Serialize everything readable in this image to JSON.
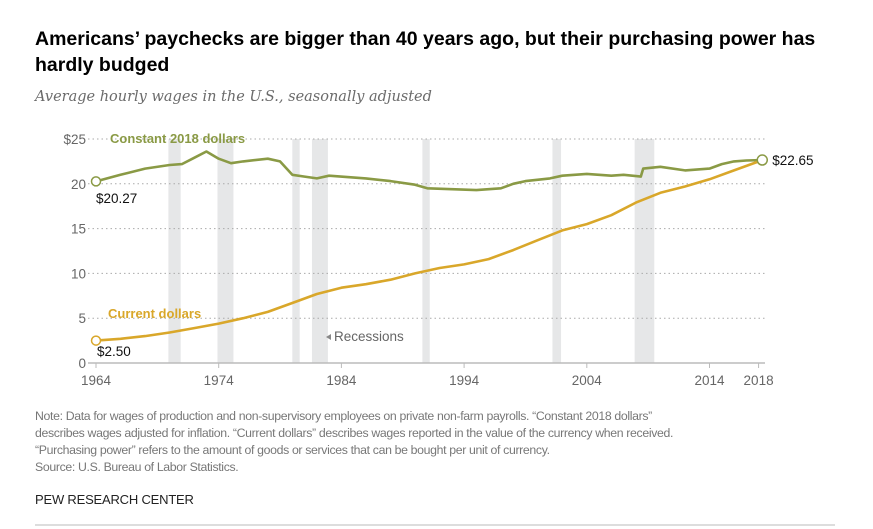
{
  "title": "Americans’ paychecks are bigger than 40 years ago, but their purchasing power has hardly budged",
  "subtitle": "Average hourly wages in the U.S., seasonally adjusted",
  "note_lines": [
    "Note: Data for wages of production and non-supervisory employees on private non-farm payrolls. “Constant 2018 dollars”",
    "describes wages adjusted for inflation. “Current dollars” describes wages reported in the value of the currency when received.",
    "“Purchasing power” refers to the amount of goods or services that can be bought per unit of currency.",
    "Source: U.S. Bureau of Labor Statistics."
  ],
  "brand": "PEW RESEARCH CENTER",
  "chart_data": {
    "type": "line",
    "title": "Average hourly wages in the U.S., seasonally adjusted",
    "xlim": [
      1964,
      2018.3
    ],
    "ylim": [
      0,
      25
    ],
    "x_ticks": [
      1964,
      1974,
      1984,
      1994,
      2004,
      2014,
      2018
    ],
    "y_ticks": [
      {
        "v": 0,
        "label": "0"
      },
      {
        "v": 5,
        "label": "5"
      },
      {
        "v": 10,
        "label": "10"
      },
      {
        "v": 15,
        "label": "15"
      },
      {
        "v": 20,
        "label": "20"
      },
      {
        "v": 25,
        "label": "$25"
      }
    ],
    "grid": "horizontal dotted",
    "recessions_label": "Recessions",
    "recessions": [
      [
        1969.9,
        1970.9
      ],
      [
        1973.9,
        1975.2
      ],
      [
        1980.0,
        1980.6
      ],
      [
        1981.6,
        1982.9
      ],
      [
        1990.6,
        1991.2
      ],
      [
        2001.2,
        2001.9
      ],
      [
        2007.9,
        2009.5
      ]
    ],
    "series": [
      {
        "name": "Constant 2018 dollars",
        "color": "#8a9a45",
        "start_label": "$20.27",
        "end_label": "$22.65",
        "points": [
          [
            1964,
            20.27
          ],
          [
            1966,
            21.0
          ],
          [
            1968,
            21.7
          ],
          [
            1970,
            22.1
          ],
          [
            1971,
            22.2
          ],
          [
            1972,
            22.9
          ],
          [
            1973,
            23.6
          ],
          [
            1974,
            22.8
          ],
          [
            1975,
            22.3
          ],
          [
            1976,
            22.5
          ],
          [
            1978,
            22.8
          ],
          [
            1979,
            22.5
          ],
          [
            1980,
            21.0
          ],
          [
            1981,
            20.8
          ],
          [
            1982,
            20.6
          ],
          [
            1983,
            20.9
          ],
          [
            1986,
            20.6
          ],
          [
            1988,
            20.3
          ],
          [
            1990,
            19.9
          ],
          [
            1991,
            19.5
          ],
          [
            1993,
            19.4
          ],
          [
            1995,
            19.3
          ],
          [
            1997,
            19.5
          ],
          [
            1998,
            20.0
          ],
          [
            1999,
            20.3
          ],
          [
            2001,
            20.6
          ],
          [
            2002,
            20.9
          ],
          [
            2004,
            21.1
          ],
          [
            2006,
            20.9
          ],
          [
            2007,
            21.0
          ],
          [
            2008.4,
            20.8
          ],
          [
            2008.6,
            21.7
          ],
          [
            2010,
            21.9
          ],
          [
            2012,
            21.5
          ],
          [
            2014,
            21.7
          ],
          [
            2015,
            22.2
          ],
          [
            2016,
            22.5
          ],
          [
            2017,
            22.6
          ],
          [
            2018.3,
            22.65
          ]
        ]
      },
      {
        "name": "Current dollars",
        "color": "#d9a72a",
        "start_label": "$2.50",
        "end_label": "$22.65",
        "points": [
          [
            1964,
            2.5
          ],
          [
            1966,
            2.7
          ],
          [
            1968,
            3.0
          ],
          [
            1970,
            3.4
          ],
          [
            1972,
            3.9
          ],
          [
            1974,
            4.4
          ],
          [
            1976,
            5.0
          ],
          [
            1978,
            5.7
          ],
          [
            1980,
            6.7
          ],
          [
            1982,
            7.7
          ],
          [
            1984,
            8.4
          ],
          [
            1986,
            8.8
          ],
          [
            1988,
            9.3
          ],
          [
            1990,
            10.0
          ],
          [
            1992,
            10.6
          ],
          [
            1994,
            11.0
          ],
          [
            1996,
            11.6
          ],
          [
            1998,
            12.6
          ],
          [
            2000,
            13.7
          ],
          [
            2002,
            14.8
          ],
          [
            2004,
            15.5
          ],
          [
            2006,
            16.5
          ],
          [
            2008,
            17.9
          ],
          [
            2010,
            19.0
          ],
          [
            2012,
            19.7
          ],
          [
            2014,
            20.5
          ],
          [
            2016,
            21.5
          ],
          [
            2018.3,
            22.65
          ]
        ]
      }
    ]
  }
}
